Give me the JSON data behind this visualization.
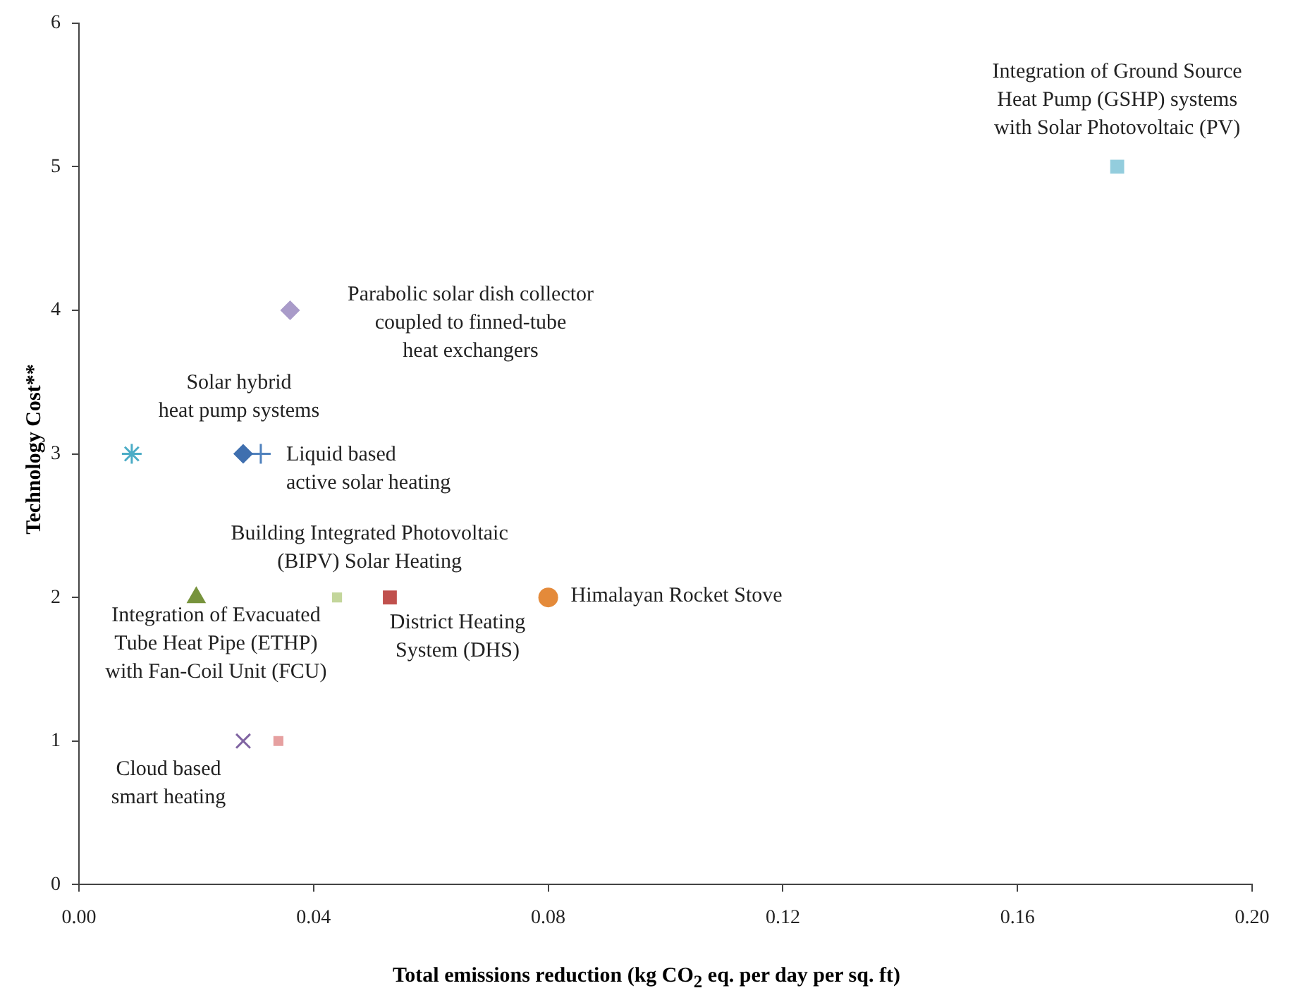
{
  "chart_data": {
    "type": "scatter",
    "xlabel": "Total emissions reduction (kg CO$_{2}$ eq. per day per sq. ft)",
    "ylabel": "Technology Cost**",
    "xlim": [
      0,
      0.2
    ],
    "xticks": [
      {
        "value": 0,
        "label": "0.00"
      },
      {
        "value": 0.04,
        "label": "0.04"
      },
      {
        "value": 0.08,
        "label": "0.08"
      },
      {
        "value": 0.12,
        "label": "0.12"
      },
      {
        "value": 0.16,
        "label": "0.16"
      },
      {
        "value": 0.2,
        "label": "0.20"
      }
    ],
    "ylim": [
      0,
      6
    ],
    "yticks": [
      0,
      1,
      2,
      3,
      4,
      5,
      6
    ],
    "grid": false,
    "legend": false,
    "series": [
      {
        "name": "Integration of Ground Source Heat Pump (GSHP) systems with Solar Photovoltaic (PV)",
        "color": "#93cddd",
        "marker": "square",
        "x": [
          0.177
        ],
        "values": [
          5
        ]
      },
      {
        "name": "Parabolic solar dish collector coupled to finned-tube heat exchangers",
        "color": "#a99bc9",
        "marker": "diamond",
        "x": [
          0.036
        ],
        "values": [
          4
        ]
      },
      {
        "name": "Solar hybrid heat pump systems",
        "color": "#3f6faf",
        "marker": "diamond",
        "x": [
          0.028
        ],
        "values": [
          3
        ]
      },
      {
        "name": "Liquid based active solar heating",
        "color": "#4f81bd",
        "marker": "cross",
        "x": [
          0.031
        ],
        "values": [
          3
        ]
      },
      {
        "color": "#4bacc6",
        "x": [
          0.009
        ],
        "values": [
          3
        ]
      },
      {
        "name": "Integration of Evacuated Tube Heat Pipe (ETHP) with Fan-Coil Unit (FCU)",
        "color": "#77933c",
        "marker": "triangle",
        "x": [
          0.02
        ],
        "values": [
          2
        ]
      },
      {
        "name": "Building Integrated Photovoltaic (BIPV) Solar Heating",
        "color": "#c3d69b",
        "marker": "square",
        "x": [
          0.044
        ],
        "values": [
          2
        ]
      },
      {
        "name": "District Heating System (DHS)",
        "color": "#c0504d",
        "marker": "square",
        "x": [
          0.053
        ],
        "values": [
          2
        ]
      },
      {
        "name": "Himalayan Rocket Stove",
        "color": "#e48a3a",
        "marker": "circle",
        "x": [
          0.08
        ],
        "values": [
          2
        ]
      },
      {
        "name": "Cloud based smart heating",
        "color": "#8064a2",
        "marker": "x",
        "x": [
          0.028
        ],
        "values": [
          1
        ]
      },
      {
        "color": "#e6a0a0",
        "marker": "square",
        "x": [
          0.034
        ],
        "values": [
          1
        ]
      }
    ]
  }
}
